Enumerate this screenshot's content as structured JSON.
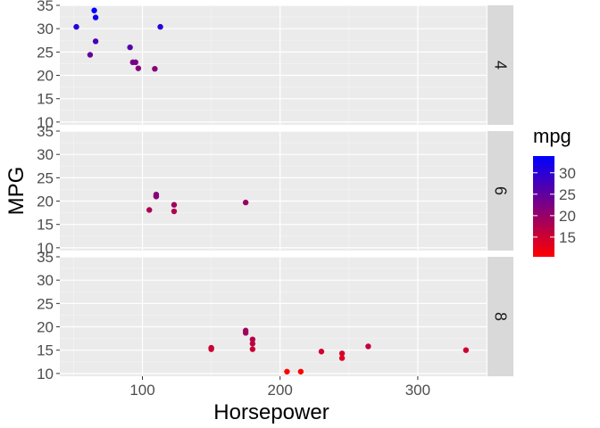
{
  "chart_data": {
    "type": "scatter",
    "facet_by": "cyl",
    "xlabel": "Horsepower",
    "ylabel": "MPG",
    "xlim": [
      40,
      350
    ],
    "ylim": [
      9.4,
      35
    ],
    "x_ticks": [
      100,
      200,
      300
    ],
    "y_ticks": [
      10,
      15,
      20,
      25,
      30,
      35
    ],
    "x_tick_labels": [
      "100",
      "200",
      "300"
    ],
    "y_tick_labels": [
      "10",
      "15",
      "20",
      "25",
      "30",
      "35"
    ],
    "grid": true,
    "color_scale": {
      "title": "mpg",
      "low": "#FF0000",
      "high": "#0000FF",
      "min": 10.4,
      "max": 33.9,
      "breaks": [
        15,
        20,
        25,
        30
      ],
      "break_labels": [
        "15",
        "20",
        "25",
        "30"
      ],
      "legend_position": "right"
    },
    "panels": [
      {
        "label": "4",
        "points": [
          {
            "x": 93,
            "y": 22.8
          },
          {
            "x": 62,
            "y": 24.4
          },
          {
            "x": 95,
            "y": 22.8
          },
          {
            "x": 66,
            "y": 32.4
          },
          {
            "x": 52,
            "y": 30.4
          },
          {
            "x": 65,
            "y": 33.9
          },
          {
            "x": 97,
            "y": 21.5
          },
          {
            "x": 66,
            "y": 27.3
          },
          {
            "x": 91,
            "y": 26.0
          },
          {
            "x": 113,
            "y": 30.4
          },
          {
            "x": 109,
            "y": 21.4
          }
        ]
      },
      {
        "label": "6",
        "points": [
          {
            "x": 110,
            "y": 21.0
          },
          {
            "x": 110,
            "y": 21.0
          },
          {
            "x": 110,
            "y": 21.4
          },
          {
            "x": 105,
            "y": 18.1
          },
          {
            "x": 123,
            "y": 19.2
          },
          {
            "x": 123,
            "y": 17.8
          },
          {
            "x": 175,
            "y": 19.7
          }
        ]
      },
      {
        "label": "8",
        "points": [
          {
            "x": 175,
            "y": 18.7
          },
          {
            "x": 245,
            "y": 14.3
          },
          {
            "x": 180,
            "y": 16.4
          },
          {
            "x": 180,
            "y": 17.3
          },
          {
            "x": 180,
            "y": 15.2
          },
          {
            "x": 205,
            "y": 10.4
          },
          {
            "x": 215,
            "y": 10.4
          },
          {
            "x": 230,
            "y": 14.7
          },
          {
            "x": 150,
            "y": 15.5
          },
          {
            "x": 150,
            "y": 15.2
          },
          {
            "x": 245,
            "y": 13.3
          },
          {
            "x": 175,
            "y": 19.2
          },
          {
            "x": 264,
            "y": 15.8
          },
          {
            "x": 335,
            "y": 15.0
          }
        ]
      }
    ]
  }
}
